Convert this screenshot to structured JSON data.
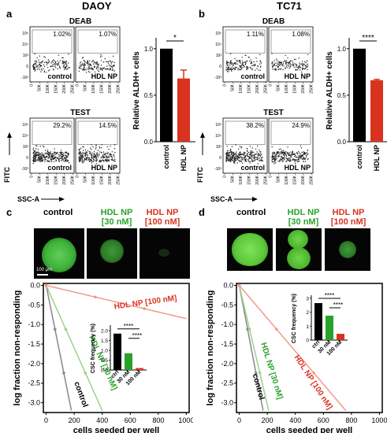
{
  "figure": {
    "panels": {
      "a": {
        "letter": "a",
        "title": "DAOY"
      },
      "b": {
        "letter": "b",
        "title": "TC71"
      },
      "c": {
        "letter": "c"
      },
      "d": {
        "letter": "d"
      }
    },
    "flow": {
      "deab_label": "DEAB",
      "test_label": "TEST",
      "control_label": "control",
      "hdl_label": "HDL NP",
      "y_axis": "FITC",
      "x_axis": "SSC-A",
      "x_ticks": [
        "0",
        "50K",
        "100K",
        "150K",
        "200K",
        "250K"
      ],
      "y_ticks": [
        "10⁵",
        "10⁴",
        "10³",
        "0",
        "-10³"
      ],
      "daoy": {
        "deab_control": "1.02%",
        "deab_hdl": "1.07%",
        "test_control": "29.2%",
        "test_hdl": "14.5%"
      },
      "tc71": {
        "deab_control": "1.11%",
        "deab_hdl": "1.08%",
        "test_control": "38.2%",
        "test_hdl": "24.9%"
      }
    },
    "micro": {
      "control": "control",
      "hdl30_a": "HDL NP",
      "hdl30_b": "[30 nM]",
      "hdl100_a": "HDL NP",
      "hdl100_b": "[100 nM]",
      "scale": "100 μm"
    },
    "colors": {
      "control": "#000000",
      "hdl_red": "#d9331f",
      "hdl_green": "#2aa22a",
      "ctrl_line": "#888888",
      "hdl100_line": "#f19a8a",
      "hdl30_line": "#9bd28d"
    }
  },
  "chart_data": [
    {
      "type": "bar",
      "panel": "a",
      "categories": [
        "control",
        "HDL NP"
      ],
      "values": [
        1.0,
        0.68
      ],
      "errors": [
        0,
        0.09
      ],
      "ylabel": "Relative ALDH+ cells",
      "ylim": [
        0,
        1.1
      ],
      "yticks": [
        "0.0",
        "0.5",
        "1.0"
      ],
      "significance": "*"
    },
    {
      "type": "bar",
      "panel": "b",
      "categories": [
        "control",
        "HDL NP"
      ],
      "values": [
        1.0,
        0.66
      ],
      "errors": [
        0,
        0.01
      ],
      "ylabel": "Relative ALDH+ cells",
      "ylim": [
        0,
        1.1
      ],
      "yticks": [
        "0.0",
        "0.5",
        "1.0"
      ],
      "significance": "****"
    },
    {
      "type": "line",
      "panel": "c",
      "xlabel": "cells seeded per well",
      "ylabel": "log fraction non-responding",
      "xlim": [
        -20,
        1020
      ],
      "ylim": [
        -3.25,
        0.05
      ],
      "xticks": [
        "0",
        "200",
        "400",
        "600",
        "800",
        "1000"
      ],
      "yticks": [
        "0.0",
        "-0.5",
        "-1.0",
        "-1.5",
        "-2.0",
        "-2.5",
        "-3.0"
      ],
      "series": [
        {
          "name": "control",
          "x": [
            0,
            180
          ],
          "y": [
            0,
            -3.2
          ]
        },
        {
          "name": "HDL NP [30 nM]",
          "x": [
            0,
            400
          ],
          "y": [
            0,
            -3.2
          ]
        },
        {
          "name": "HDL NP [100 nM]",
          "x": [
            0,
            1000
          ],
          "y": [
            0,
            -0.85
          ]
        }
      ]
    },
    {
      "type": "bar",
      "panel": "c-inset",
      "categories": [
        "ctrl",
        "30 nM",
        "100 nM"
      ],
      "values": [
        1.85,
        0.85,
        0.1
      ],
      "ylabel": "CSC frequency (%)",
      "ylim": [
        0,
        2.2
      ],
      "yticks": [
        "0.0",
        "0.5",
        "1.0",
        "1.5",
        "2.0"
      ],
      "significance": [
        "****",
        "****"
      ]
    },
    {
      "type": "line",
      "panel": "d",
      "xlabel": "cells seeded per well",
      "ylabel": "log fraction non-responding",
      "xlim": [
        -20,
        1020
      ],
      "ylim": [
        -3.25,
        0.05
      ],
      "xticks": [
        "0",
        "200",
        "400",
        "600",
        "800",
        "1000"
      ],
      "yticks": [
        "0.0",
        "-0.5",
        "-1.0",
        "-1.5",
        "-2.0",
        "-2.5",
        "-3.0"
      ],
      "series": [
        {
          "name": "control",
          "x": [
            0,
            170
          ],
          "y": [
            0,
            -3.2
          ]
        },
        {
          "name": "HDL NP [30 nM]",
          "x": [
            0,
            210
          ],
          "y": [
            0,
            -3.2
          ]
        },
        {
          "name": "HDL NP [100 nM]",
          "x": [
            0,
            760
          ],
          "y": [
            0,
            -3.2
          ]
        }
      ]
    },
    {
      "type": "bar",
      "panel": "d-inset",
      "categories": [
        "ctrl",
        "30 nM",
        "100 nM"
      ],
      "values": [
        2.65,
        1.75,
        0.45
      ],
      "ylabel": "CSC frequency (%)",
      "ylim": [
        0,
        3.1
      ],
      "yticks": [
        "0",
        "1",
        "2",
        "3"
      ],
      "significance": [
        "****",
        "****"
      ]
    }
  ]
}
